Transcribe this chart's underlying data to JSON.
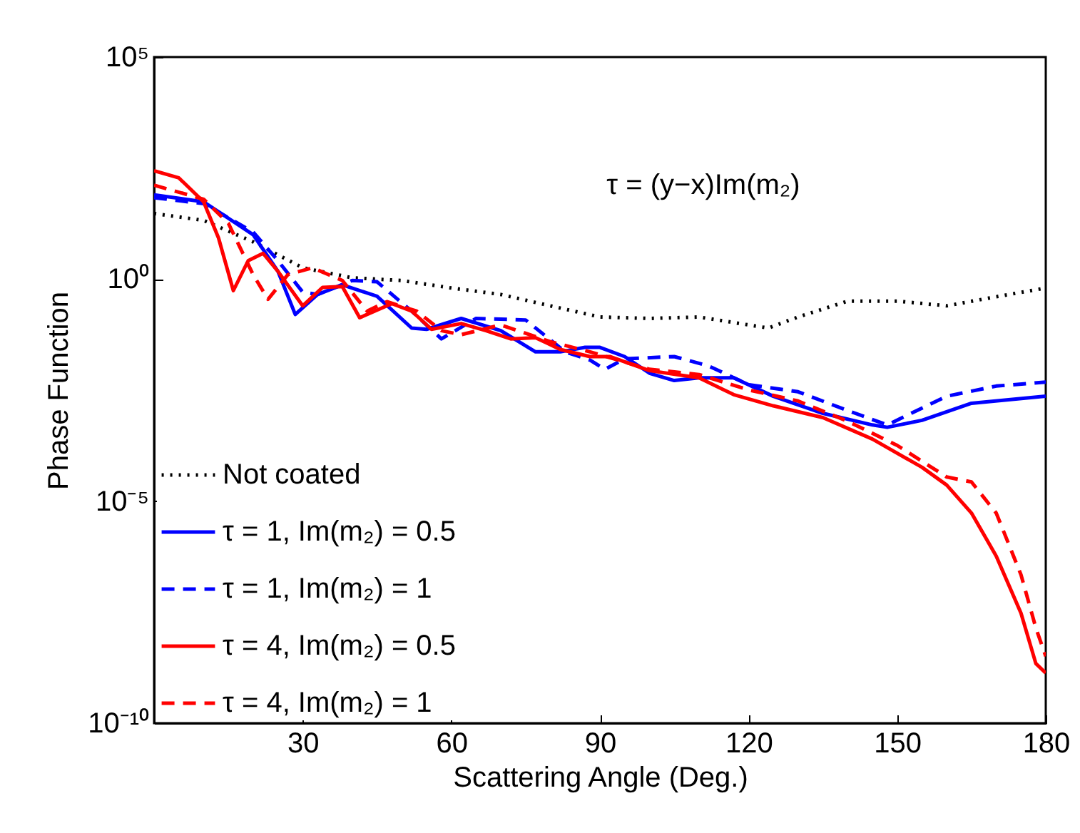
{
  "chart_data": {
    "type": "line",
    "xlabel": "Scattering Angle (Deg.)",
    "ylabel": "Phase Function",
    "log": "y",
    "xlim": [
      0,
      180
    ],
    "xticks": [
      30,
      60,
      90,
      120,
      150,
      180
    ],
    "ylim": [
      1e-10,
      100000
    ],
    "yticks": [
      {
        "value": 1e-10,
        "label": "10⁻¹⁰"
      },
      {
        "value": 1e-05,
        "label": "10⁻⁵"
      },
      {
        "value": 1,
        "label": "10⁰"
      },
      {
        "value": 100000,
        "label": "10⁵"
      }
    ],
    "legend": "bottom left",
    "annotations": [
      "τ = (y−x)Im(m₂)"
    ],
    "series": [
      {
        "name": "Not coated",
        "color": "#000000",
        "line_style": "dotted",
        "x": [
          0,
          10,
          20,
          30,
          40,
          50,
          60,
          70,
          80,
          90,
          100,
          110,
          120,
          124,
          130,
          140,
          150,
          160,
          170,
          180
        ],
        "values": [
          30,
          21,
          6.9,
          1.8,
          1.07,
          0.93,
          0.63,
          0.45,
          0.25,
          0.14,
          0.13,
          0.14,
          0.093,
          0.079,
          0.14,
          0.32,
          0.32,
          0.25,
          0.4,
          0.63
        ]
      },
      {
        "name": "τ = 1, Im(m₂) = 0.5",
        "color": "#0000ff",
        "line_style": "solid",
        "x": [
          0,
          10,
          20,
          25,
          28.5,
          33,
          38,
          45,
          52,
          55,
          62,
          70,
          77,
          82,
          87,
          90,
          95,
          100,
          105,
          110,
          117,
          125,
          135,
          145,
          148,
          155,
          165,
          180
        ],
        "values": [
          79,
          55,
          10,
          1.5,
          0.16,
          0.45,
          0.74,
          0.41,
          0.079,
          0.074,
          0.13,
          0.069,
          0.023,
          0.023,
          0.029,
          0.029,
          0.018,
          0.0076,
          0.0052,
          0.006,
          0.006,
          0.0023,
          0.00095,
          0.00052,
          0.00046,
          0.00066,
          0.0016,
          0.0023
        ]
      },
      {
        "name": "τ = 1, Im(m₂) = 1",
        "color": "#0000ff",
        "line_style": "dashed",
        "x": [
          0,
          10,
          20,
          25,
          30,
          33,
          40,
          45,
          52,
          58,
          65,
          75,
          83,
          88,
          91,
          95,
          105,
          112,
          120,
          130,
          140,
          148,
          160,
          170,
          180
        ],
        "values": [
          68,
          50,
          11.5,
          2.6,
          0.51,
          0.45,
          0.93,
          0.87,
          0.19,
          0.045,
          0.13,
          0.12,
          0.023,
          0.015,
          0.0093,
          0.016,
          0.018,
          0.011,
          0.0042,
          0.0029,
          0.0011,
          0.00052,
          0.0023,
          0.0039,
          0.0048
        ]
      },
      {
        "name": "τ = 4, Im(m₂) = 0.5",
        "color": "#ff0000",
        "line_style": "solid",
        "x": [
          0,
          5,
          10,
          13,
          16,
          19,
          22,
          25,
          30,
          34,
          38,
          41.5,
          48,
          52,
          56,
          62,
          67,
          72,
          77,
          82,
          88,
          92,
          100,
          110,
          117,
          125,
          135,
          145,
          155,
          160,
          165,
          170,
          175,
          178,
          180
        ],
        "values": [
          275,
          190,
          55,
          8.5,
          0.55,
          2.6,
          3.8,
          1.5,
          0.25,
          0.65,
          0.68,
          0.135,
          0.28,
          0.19,
          0.074,
          0.1,
          0.069,
          0.045,
          0.048,
          0.026,
          0.018,
          0.018,
          0.0087,
          0.006,
          0.0025,
          0.0014,
          0.00076,
          0.00025,
          5.8e-05,
          2.3e-05,
          5.4e-06,
          5.8e-07,
          3e-08,
          2.2e-09,
          1.35e-09
        ]
      },
      {
        "name": "τ = 4, Im(m₂) = 1",
        "color": "#ff0000",
        "line_style": "dashed",
        "x": [
          0,
          10,
          15,
          20,
          23,
          27,
          32,
          38,
          43,
          47,
          53,
          58,
          62,
          70,
          80,
          88,
          100,
          110,
          120,
          130,
          140,
          150,
          160,
          165,
          170,
          175,
          178,
          180
        ],
        "values": [
          130,
          63,
          18,
          1.26,
          0.35,
          1.26,
          1.8,
          0.93,
          0.19,
          0.31,
          0.19,
          0.069,
          0.056,
          0.093,
          0.039,
          0.023,
          0.0093,
          0.0071,
          0.0032,
          0.0018,
          0.00063,
          0.00018,
          3.5e-05,
          2.7e-05,
          5.4e-06,
          2.2e-07,
          1.4e-08,
          3.2e-09
        ]
      }
    ]
  }
}
